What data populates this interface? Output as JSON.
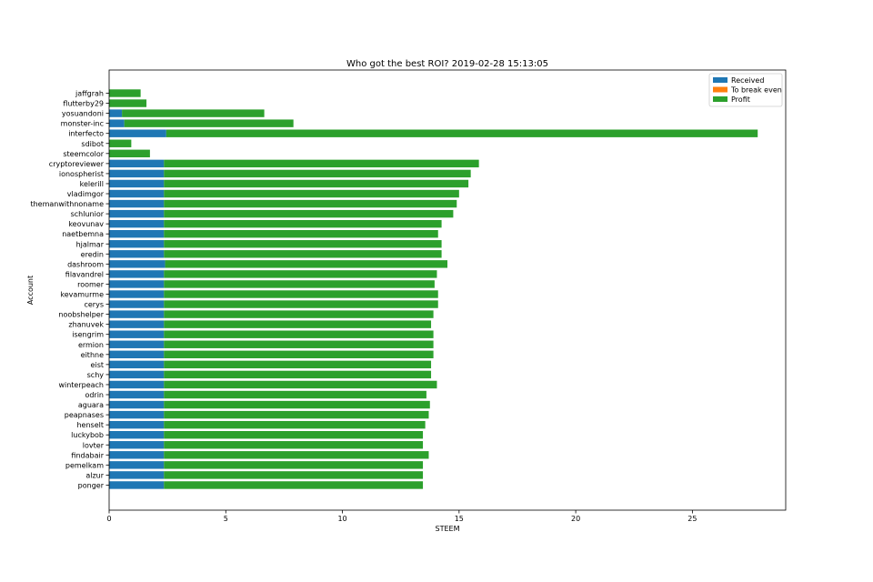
{
  "chart_data": {
    "type": "bar",
    "orientation": "horizontal",
    "stacked": true,
    "title": "Who got the best ROI? 2019-02-28 15:13:05",
    "xlabel": "STEEM",
    "ylabel": "Account",
    "xlim": [
      0,
      29
    ],
    "xticks": [
      0,
      5,
      10,
      15,
      20,
      25
    ],
    "grid": false,
    "legend_position": "top-right",
    "categories": [
      "jaffgrah",
      "flutterby29",
      "yosuandoni",
      "monster-inc",
      "interfecto",
      "sdibot",
      "steemcolor",
      "cryptoreviewer",
      "ionospherist",
      "kelerill",
      "vladimgor",
      "themanwithnoname",
      "schlunior",
      "keovunav",
      "naetbemna",
      "hjalmar",
      "eredin",
      "dashroom",
      "filavandrel",
      "roomer",
      "kevamurme",
      "cerys",
      "noobshelper",
      "zhanuvek",
      "isengrim",
      "ermion",
      "eithne",
      "eist",
      "schy",
      "winterpeach",
      "odrin",
      "aguara",
      "peapnases",
      "henselt",
      "luckybob",
      "lovter",
      "findabair",
      "pemelkam",
      "alzur",
      "ponger"
    ],
    "series": [
      {
        "name": "Received",
        "color": "#1f77b4",
        "values": [
          0,
          0,
          0.55,
          0.65,
          2.45,
          0,
          0,
          2.35,
          2.35,
          2.35,
          2.35,
          2.35,
          2.35,
          2.35,
          2.35,
          2.35,
          2.35,
          2.4,
          2.35,
          2.35,
          2.35,
          2.35,
          2.35,
          2.35,
          2.35,
          2.35,
          2.35,
          2.35,
          2.35,
          2.35,
          2.35,
          2.35,
          2.35,
          2.35,
          2.35,
          2.35,
          2.35,
          2.35,
          2.35,
          2.35
        ]
      },
      {
        "name": "To break even",
        "color": "#ff7f0e",
        "values": [
          0,
          0,
          0,
          0,
          0,
          0,
          0,
          0,
          0,
          0,
          0,
          0,
          0,
          0,
          0,
          0,
          0,
          0,
          0,
          0,
          0,
          0,
          0,
          0,
          0,
          0,
          0,
          0,
          0,
          0,
          0,
          0,
          0,
          0,
          0,
          0,
          0,
          0,
          0,
          0
        ]
      },
      {
        "name": "Profit",
        "color": "#2ca02c",
        "values": [
          1.35,
          1.6,
          6.1,
          7.25,
          25.35,
          0.95,
          1.75,
          13.5,
          13.15,
          13.05,
          12.65,
          12.55,
          12.4,
          11.9,
          11.75,
          11.9,
          11.9,
          12.1,
          11.7,
          11.6,
          11.75,
          11.75,
          11.55,
          11.45,
          11.55,
          11.55,
          11.55,
          11.45,
          11.45,
          11.7,
          11.25,
          11.4,
          11.35,
          11.2,
          11.1,
          11.1,
          11.35,
          11.1,
          11.1,
          11.1
        ]
      }
    ]
  }
}
